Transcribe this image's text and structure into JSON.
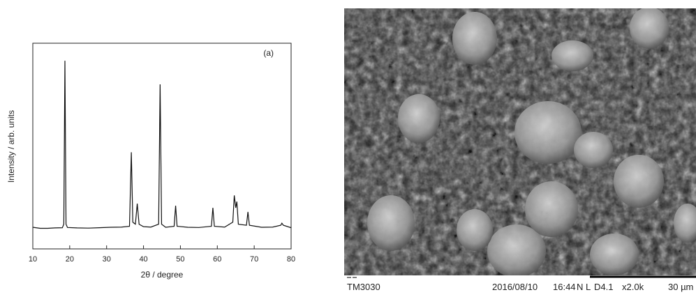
{
  "chart_data": {
    "type": "line",
    "annotation": "(a)",
    "xlabel": "2θ / degree",
    "ylabel": "Intensity / arb. units",
    "xlim": [
      10,
      80
    ],
    "xticks": [
      10,
      20,
      30,
      40,
      50,
      60,
      70,
      80
    ],
    "ylim": [
      0,
      100
    ],
    "color": "#111111",
    "x": [
      10,
      12,
      14,
      16,
      18,
      18.4,
      18.7,
      19.0,
      19.4,
      22,
      25,
      28,
      31,
      34,
      36.2,
      36.7,
      37.1,
      37.8,
      38.3,
      38.8,
      40,
      42,
      44.1,
      44.5,
      44.9,
      46,
      48.3,
      48.7,
      49.1,
      52,
      55,
      58.4,
      58.8,
      59.2,
      62,
      64.2,
      64.6,
      65.0,
      65.3,
      65.7,
      67.9,
      68.3,
      68.7,
      72,
      75,
      77.2,
      77.5,
      77.9,
      80
    ],
    "values": [
      10.5,
      10,
      10,
      10.2,
      10.3,
      12,
      91.5,
      12,
      10.4,
      10.2,
      10.1,
      10.3,
      10.5,
      10.6,
      11,
      47,
      13,
      12,
      22,
      12,
      10.8,
      10.6,
      12,
      80,
      12,
      10.5,
      11,
      21,
      11,
      10.5,
      10.4,
      11,
      20,
      11,
      10.6,
      13,
      26,
      20,
      23,
      12,
      11.5,
      18,
      11.5,
      10.5,
      10.6,
      11.5,
      12.5,
      11.5,
      10.3
    ]
  },
  "image": {
    "footer": {
      "instrument": "TM3030",
      "date": "2016/08/10",
      "time": "16:44",
      "mode": "N L",
      "wd": "D4.1",
      "magnification": "x2.0k",
      "scale": "30 µm"
    }
  }
}
